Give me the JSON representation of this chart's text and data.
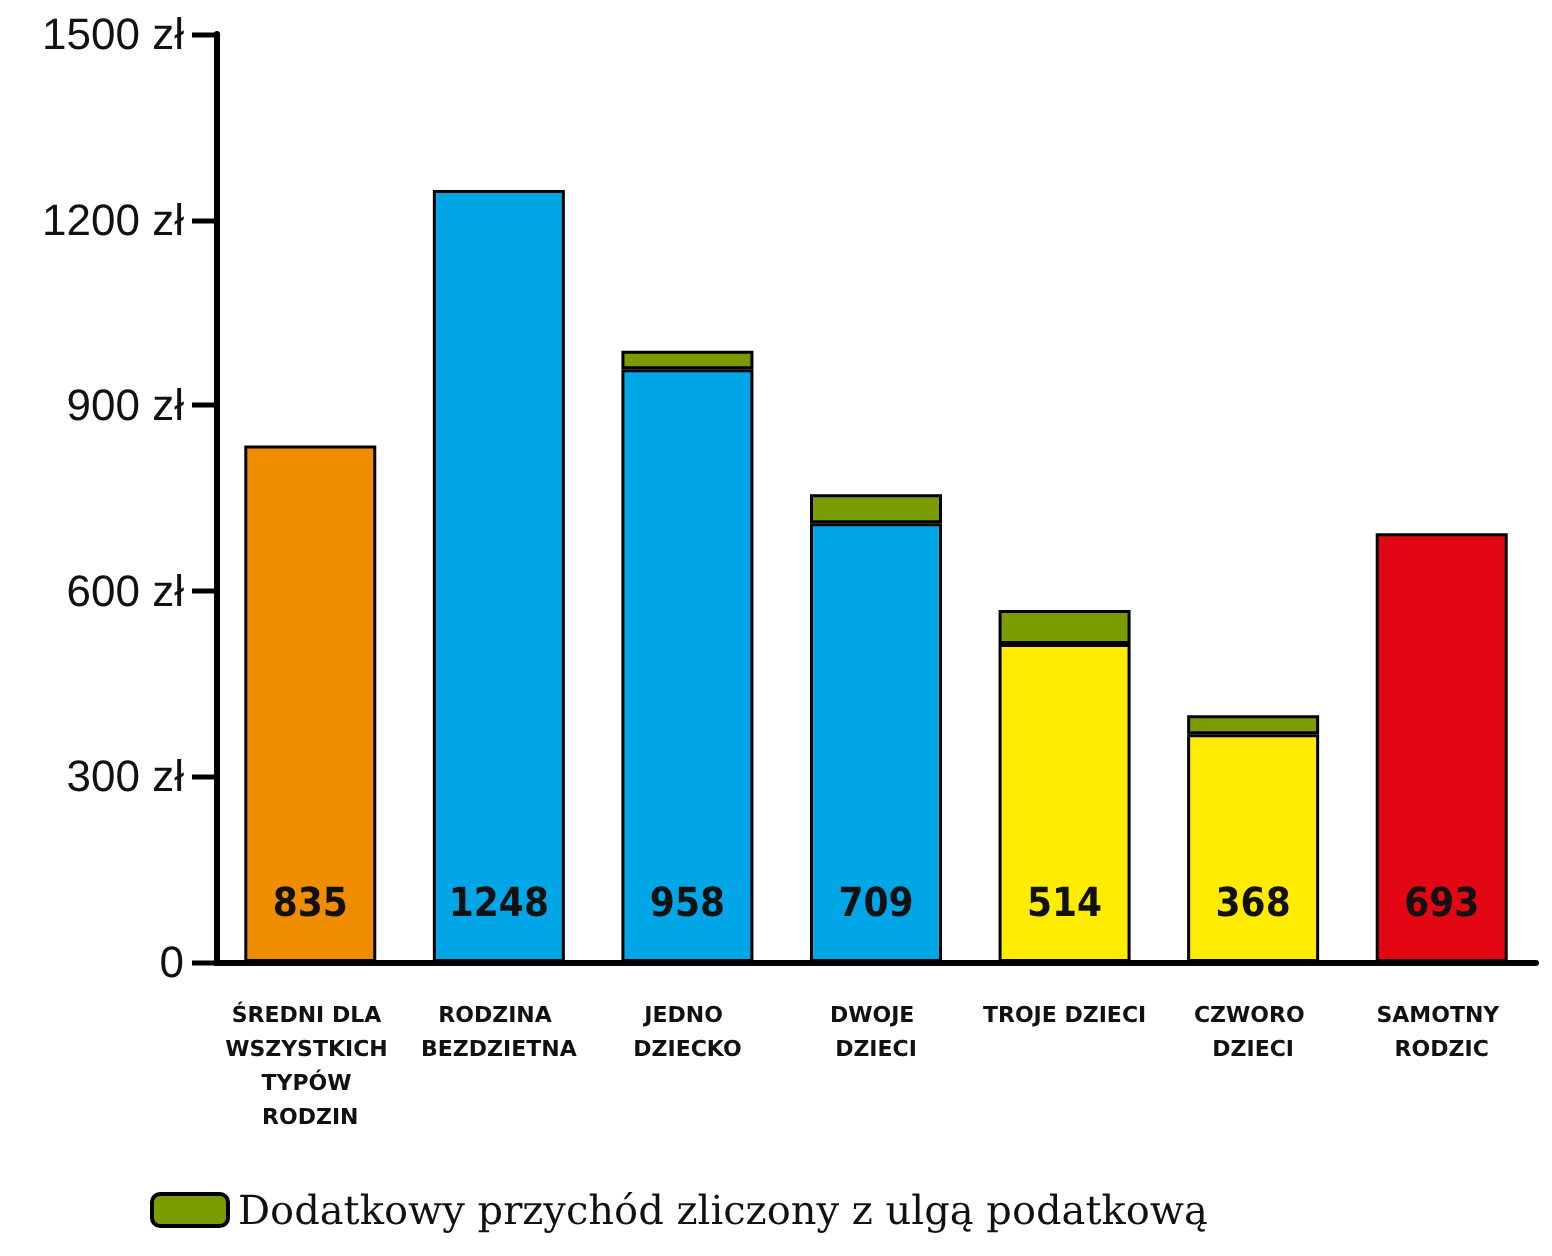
{
  "chart_data": {
    "type": "bar",
    "stacked": true,
    "categories": [
      "ŚREDNI DLA WSZYSTKICH TYPÓW RODZIN",
      "RODZINA BEZDZIETNA",
      "JEDNO DZIECKO",
      "DWOJE DZIECI",
      "TROJE DZIECI",
      "CZWORO DZIECI",
      "SAMOTNY RODZIC"
    ],
    "series": [
      {
        "colors": [
          "#f08c00",
          "#00a6e6",
          "#00a6e6",
          "#00a6e6",
          "#ffec00",
          "#ffec00",
          "#e30613"
        ],
        "values": [
          835,
          1248,
          958,
          709,
          514,
          368,
          693
        ],
        "value_labels": [
          "835",
          "1248",
          "958",
          "709",
          "514",
          "368",
          "693"
        ]
      },
      {
        "name": "Dodatkowy przychód zliczony z ulgą podatkową",
        "color": "#7a9c00",
        "values": [
          null,
          null,
          30,
          47,
          55,
          31,
          null
        ]
      }
    ],
    "ylim": [
      0,
      1500
    ],
    "yticks": [
      {
        "value": 0,
        "label": "0"
      },
      {
        "value": 300,
        "label": "300 zł"
      },
      {
        "value": 600,
        "label": "600 zł"
      },
      {
        "value": 900,
        "label": "900 zł"
      },
      {
        "value": 1200,
        "label": "1200 zł"
      },
      {
        "value": 1500,
        "label": "1500 zł"
      }
    ],
    "grid": false,
    "legend": "bottom"
  }
}
